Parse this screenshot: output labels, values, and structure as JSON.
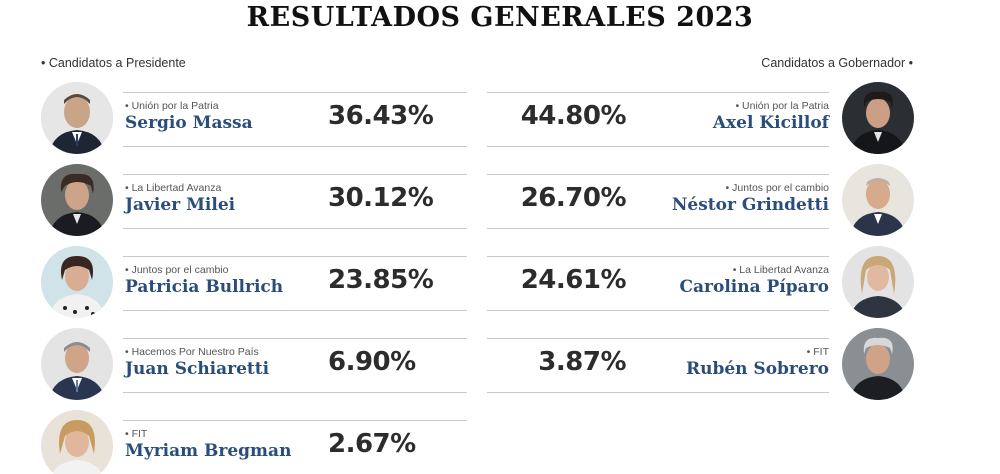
{
  "title": "RESULTADOS GENERALES 2023",
  "left_label": "• Candidatos a Presidente",
  "right_label": "Candidatos a Gobernador •",
  "presidente": [
    {
      "party": "• Unión por la Patria",
      "name": "Sergio Massa",
      "pct": "36.43%"
    },
    {
      "party": "• La Libertad Avanza",
      "name": "Javier Milei",
      "pct": "30.12%"
    },
    {
      "party": "• Juntos por el cambio",
      "name": "Patricia Bullrich",
      "pct": "23.85%"
    },
    {
      "party": "• Hacemos Por Nuestro País",
      "name": "Juan Schiaretti",
      "pct": "6.90%"
    },
    {
      "party": "• FIT",
      "name": "Myriam Bregman",
      "pct": "2.67%"
    }
  ],
  "gobernador": [
    {
      "party": "• Unión por la Patria",
      "name": "Axel Kicillof",
      "pct": "44.80%"
    },
    {
      "party": "• Juntos por el cambio",
      "name": "Néstor Grindetti",
      "pct": "26.70%"
    },
    {
      "party": "• La Libertad Avanza",
      "name": "Carolina Píparo",
      "pct": "24.61%"
    },
    {
      "party": "• FIT",
      "name": "Rubén Sobrero",
      "pct": "3.87%"
    }
  ]
}
